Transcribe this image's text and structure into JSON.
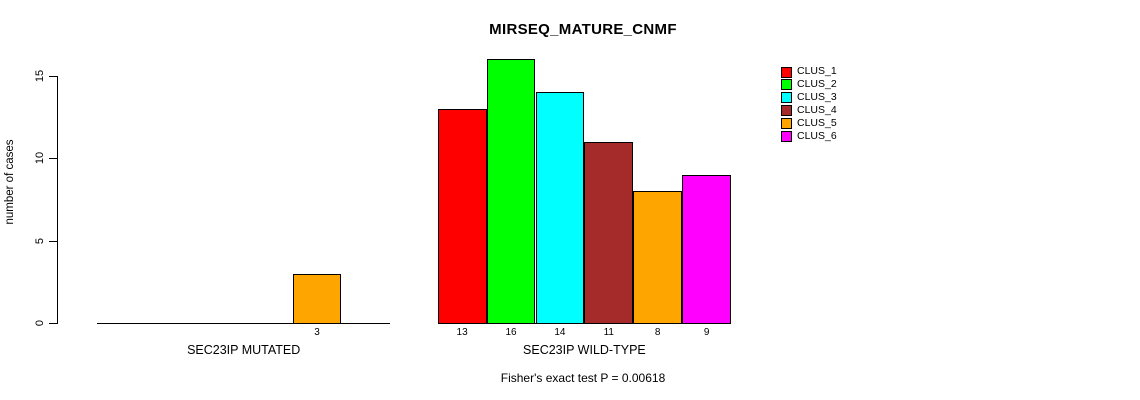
{
  "chart_data": {
    "type": "bar",
    "title": "MIRSEQ_MATURE_CNMF",
    "ylabel": "number of cases",
    "yticks": [
      0,
      5,
      10,
      15
    ],
    "ylim": [
      0,
      16
    ],
    "grid": false,
    "legend_position": "top-right",
    "clusters": [
      "CLUS_1",
      "CLUS_2",
      "CLUS_3",
      "CLUS_4",
      "CLUS_5",
      "CLUS_6"
    ],
    "colors": [
      "#FF0000",
      "#00FF00",
      "#00FFFF",
      "#A52A2A",
      "#FFA500",
      "#FF00FF"
    ],
    "groups": [
      {
        "label": "SEC23IP MUTATED",
        "values": [
          0,
          0,
          0,
          0,
          3,
          0
        ]
      },
      {
        "label": "SEC23IP WILD-TYPE",
        "values": [
          13,
          16,
          14,
          11,
          8,
          9
        ]
      }
    ],
    "annotation": "Fisher's exact test P = 0.00618",
    "axis_color": "#000000",
    "background_color": "#FFFFFF"
  }
}
